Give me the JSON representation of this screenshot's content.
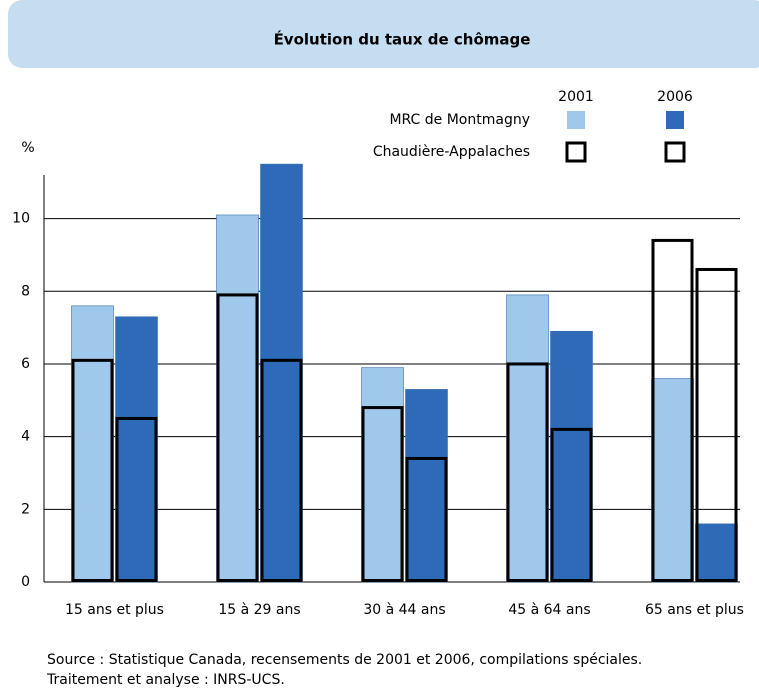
{
  "chart_data": {
    "type": "bar",
    "title": "Évolution du taux de chômage",
    "y_label": "%",
    "categories": [
      "15 ans et plus",
      "15 à 29 ans",
      "30 à 44 ans",
      "45 à 64 ans",
      "65 ans et plus"
    ],
    "years": [
      "2001",
      "2006"
    ],
    "series": [
      {
        "name": "MRC de Montmagny",
        "colors": [
          "#9fc8ea",
          "#2e6ab7"
        ],
        "outline": false,
        "values": [
          [
            7.6,
            10.1,
            5.9,
            7.9,
            5.6
          ],
          [
            7.3,
            11.5,
            5.3,
            6.9,
            1.6
          ]
        ]
      },
      {
        "name": "Chaudière-Appalaches",
        "colors": [
          "#000000",
          "#000000"
        ],
        "outline": true,
        "values": [
          [
            6.1,
            7.9,
            4.8,
            6.0,
            9.4
          ],
          [
            4.5,
            6.1,
            3.4,
            4.2,
            8.6
          ]
        ]
      }
    ],
    "ylim": [
      0,
      11.2
    ],
    "yticks": [
      0,
      2,
      4,
      6,
      8,
      10
    ],
    "grid": true,
    "notes": [
      "Source : Statistique Canada, recensements de 2001 et 2006, compilations spéciales.",
      "Traitement et analyse : INRS-UCS."
    ]
  }
}
